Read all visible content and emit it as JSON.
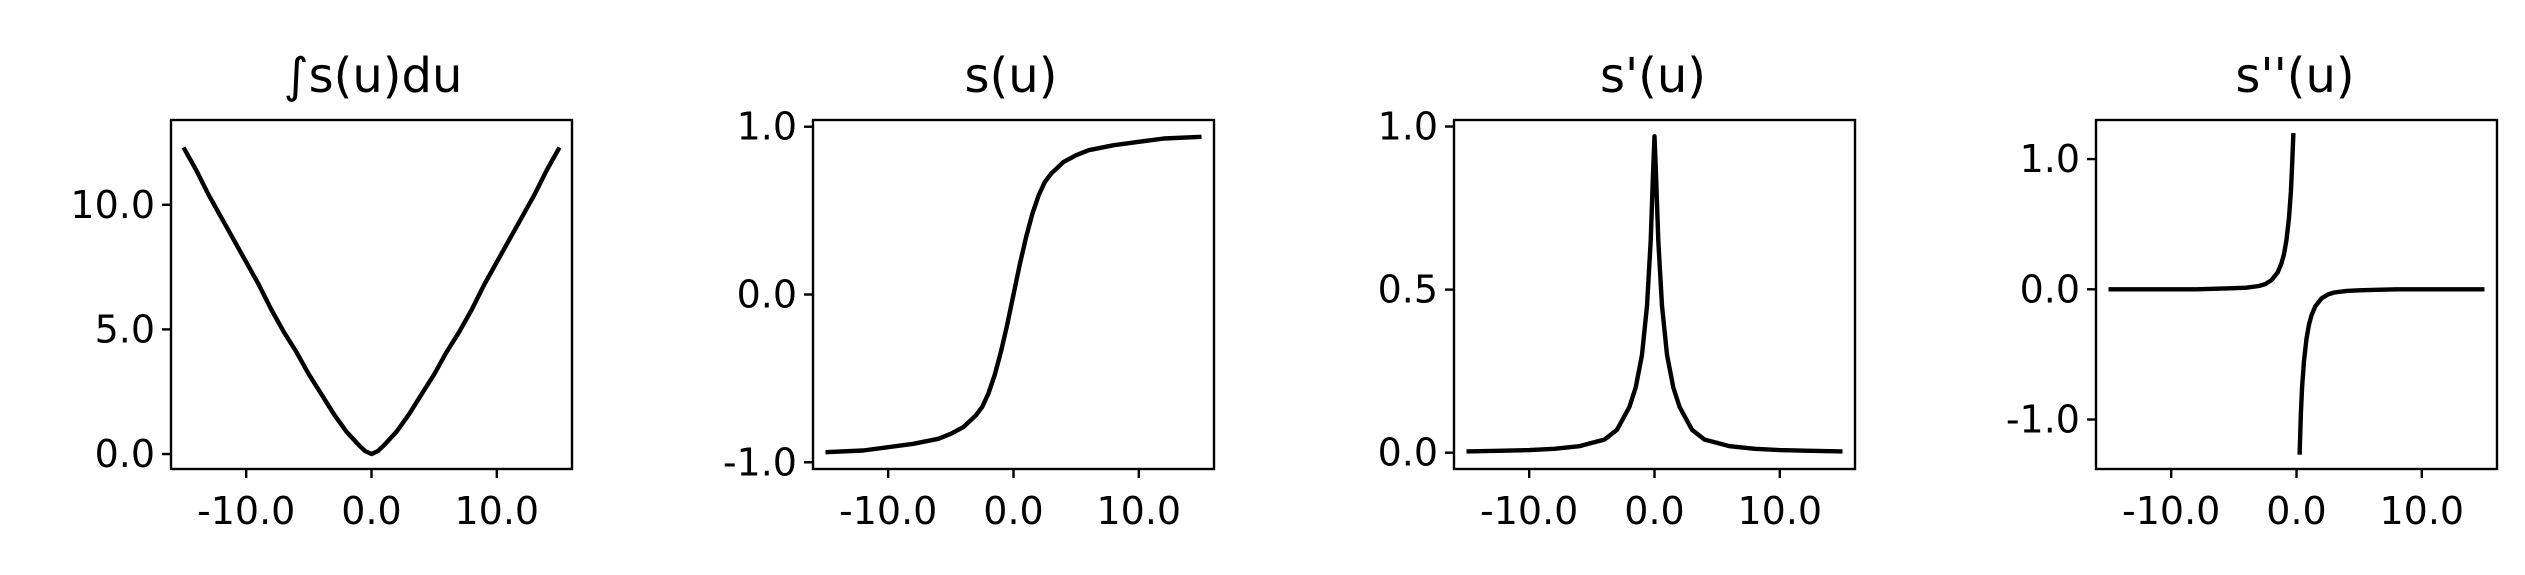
{
  "chart_data": [
    {
      "type": "line",
      "title": "∫s(u)du",
      "xlabel": "",
      "ylabel": "",
      "xlim": [
        -16.0,
        16.0
      ],
      "ylim": [
        -0.6,
        13.4
      ],
      "xticks": [
        -10,
        0,
        10
      ],
      "xtick_labels": [
        "-10.0",
        "0.0",
        "10.0"
      ],
      "yticks": [
        0,
        5,
        10
      ],
      "ytick_labels": [
        "0.0",
        "5.0",
        "10.0"
      ],
      "grid": false,
      "series": [
        {
          "x": [
            -15,
            -14,
            -13,
            -12,
            -11,
            -10,
            -9,
            -8,
            -7,
            -6,
            -5,
            -4,
            -3,
            -2,
            -1,
            -0.5,
            0,
            0.5,
            1,
            2,
            3,
            4,
            5,
            6,
            7,
            8,
            9,
            10,
            11,
            12,
            13,
            14,
            15
          ],
          "values": [
            12.3,
            11.4,
            10.4,
            9.5,
            8.6,
            7.7,
            6.8,
            5.8,
            4.9,
            4.1,
            3.2,
            2.4,
            1.6,
            0.9,
            0.35,
            0.12,
            0.0,
            0.12,
            0.35,
            0.9,
            1.6,
            2.4,
            3.2,
            4.1,
            4.9,
            5.8,
            6.8,
            7.7,
            8.6,
            9.5,
            10.4,
            11.4,
            12.3
          ],
          "color": "#000000"
        }
      ]
    },
    {
      "type": "line",
      "title": "s(u)",
      "xlabel": "",
      "ylabel": "",
      "xlim": [
        -16.0,
        16.0
      ],
      "ylim": [
        -1.04,
        1.04
      ],
      "xticks": [
        -10,
        0,
        10
      ],
      "xtick_labels": [
        "-10.0",
        "0.0",
        "10.0"
      ],
      "yticks": [
        -1,
        0,
        1
      ],
      "ytick_labels": [
        "-1.0",
        "0.0",
        "1.0"
      ],
      "grid": false,
      "series": [
        {
          "x": [
            -15,
            -12,
            -10,
            -8,
            -6,
            -5,
            -4,
            -3,
            -2.5,
            -2,
            -1.5,
            -1,
            -0.5,
            0,
            0.5,
            1,
            1.5,
            2,
            2.5,
            3,
            4,
            5,
            6,
            8,
            10,
            12,
            15
          ],
          "values": [
            -0.94,
            -0.93,
            -0.91,
            -0.89,
            -0.86,
            -0.83,
            -0.79,
            -0.72,
            -0.67,
            -0.59,
            -0.48,
            -0.34,
            -0.18,
            0.0,
            0.18,
            0.34,
            0.48,
            0.59,
            0.67,
            0.72,
            0.79,
            0.83,
            0.86,
            0.89,
            0.91,
            0.93,
            0.94
          ],
          "color": "#000000"
        }
      ]
    },
    {
      "type": "line",
      "title": "s'(u)",
      "xlabel": "",
      "ylabel": "",
      "xlim": [
        -16.0,
        16.0
      ],
      "ylim": [
        -0.05,
        1.02
      ],
      "xticks": [
        -10,
        0,
        10
      ],
      "xtick_labels": [
        "-10.0",
        "0.0",
        "10.0"
      ],
      "yticks": [
        0,
        0.5,
        1
      ],
      "ytick_labels": [
        "0.0",
        "0.5",
        "1.0"
      ],
      "grid": false,
      "series": [
        {
          "x": [
            -15,
            -12,
            -10,
            -8,
            -6,
            -5,
            -4,
            -3,
            -2,
            -1.5,
            -1,
            -0.6,
            -0.3,
            -0.1,
            0,
            0.1,
            0.3,
            0.6,
            1,
            1.5,
            2,
            3,
            4,
            5,
            6,
            8,
            10,
            12,
            15
          ],
          "values": [
            0.004,
            0.006,
            0.008,
            0.012,
            0.02,
            0.03,
            0.04,
            0.07,
            0.14,
            0.2,
            0.3,
            0.45,
            0.65,
            0.87,
            0.97,
            0.87,
            0.65,
            0.45,
            0.3,
            0.2,
            0.14,
            0.07,
            0.04,
            0.03,
            0.02,
            0.012,
            0.008,
            0.006,
            0.004
          ],
          "color": "#000000"
        }
      ]
    },
    {
      "type": "line",
      "title": "s''(u)",
      "xlabel": "",
      "ylabel": "",
      "xlim": [
        -16.0,
        16.0
      ],
      "ylim": [
        -1.38,
        1.3
      ],
      "xticks": [
        -10,
        0,
        10
      ],
      "xtick_labels": [
        "-10.0",
        "0.0",
        "10.0"
      ],
      "yticks": [
        -1,
        0,
        1
      ],
      "ytick_labels": [
        "-1.0",
        "0.0",
        "1.0"
      ],
      "grid": false,
      "series": [
        {
          "x": [
            -15,
            -10,
            -8,
            -6,
            -5,
            -4,
            -3,
            -2.5,
            -2,
            -1.5,
            -1.2,
            -1,
            -0.8,
            -0.6,
            -0.45,
            -0.35,
            -0.25
          ],
          "values": [
            0.0,
            0.0,
            0.0,
            0.005,
            0.008,
            0.012,
            0.025,
            0.04,
            0.07,
            0.13,
            0.2,
            0.27,
            0.38,
            0.55,
            0.75,
            0.95,
            1.2
          ],
          "color": "#000000"
        },
        {
          "x": [
            0.25,
            0.35,
            0.45,
            0.6,
            0.8,
            1,
            1.2,
            1.5,
            2,
            2.5,
            3,
            4,
            5,
            6,
            8,
            10,
            15
          ],
          "values": [
            -1.27,
            -0.95,
            -0.75,
            -0.55,
            -0.38,
            -0.27,
            -0.2,
            -0.13,
            -0.07,
            -0.04,
            -0.025,
            -0.012,
            -0.008,
            -0.005,
            0.0,
            0.0,
            0.0
          ],
          "color": "#000000"
        }
      ]
    }
  ]
}
